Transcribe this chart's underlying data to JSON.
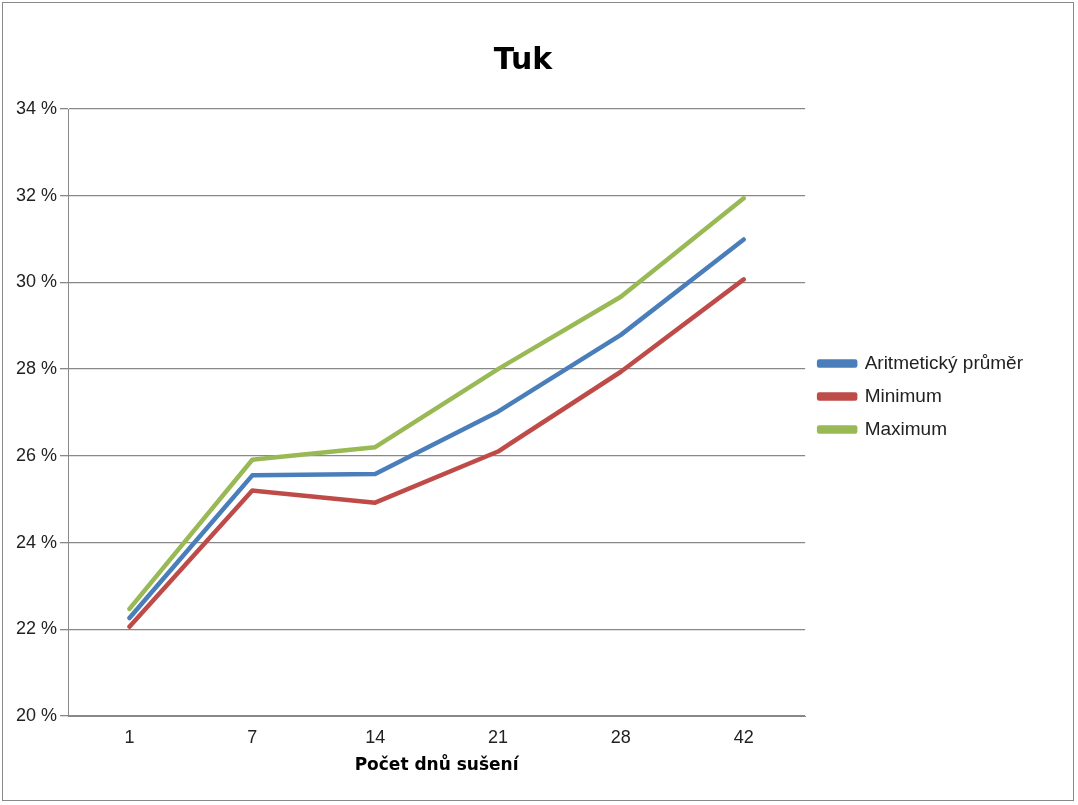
{
  "chart_data": {
    "type": "line",
    "title": "Tuk",
    "xlabel": "Počet dnů sušení",
    "categories": [
      "1",
      "7",
      "14",
      "21",
      "28",
      "42"
    ],
    "series": [
      {
        "name": "Aritmetický průměr",
        "color": "#4a7ebb",
        "values": [
          22.26,
          25.55,
          25.58,
          27.02,
          28.79,
          30.99
        ]
      },
      {
        "name": "Minimum",
        "color": "#be4b48",
        "values": [
          22.06,
          25.2,
          24.92,
          26.1,
          27.94,
          30.07
        ]
      },
      {
        "name": "Maximum",
        "color": "#98b954",
        "values": [
          22.47,
          25.91,
          26.2,
          28.0,
          29.67,
          31.94
        ]
      }
    ],
    "ylim": [
      20,
      34
    ],
    "yticks": [
      {
        "value": 20,
        "label": "20 %"
      },
      {
        "value": 22,
        "label": "22 %"
      },
      {
        "value": 24,
        "label": "24 %"
      },
      {
        "value": 26,
        "label": "26 %"
      },
      {
        "value": 28,
        "label": "28 %"
      },
      {
        "value": 30,
        "label": "30 %"
      },
      {
        "value": 32,
        "label": "32 %"
      },
      {
        "value": 34,
        "label": "34 %"
      }
    ],
    "grid": "y",
    "legend": "right",
    "marker": "none",
    "line_style": "solid"
  }
}
